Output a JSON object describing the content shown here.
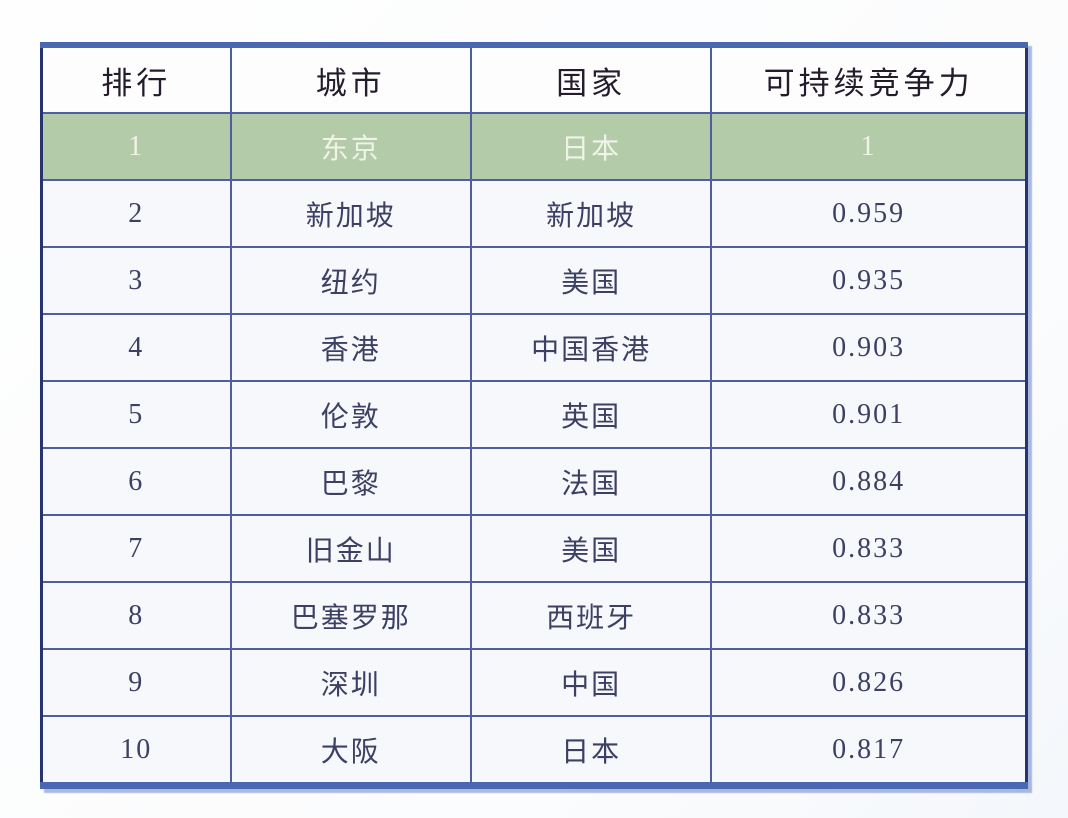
{
  "chart_data": {
    "type": "table",
    "title": "",
    "columns": [
      "排行",
      "城市",
      "国家",
      "可持续竞争力"
    ],
    "rows": [
      {
        "rank": "1",
        "city": "东京",
        "country": "日本",
        "score": "1",
        "highlighted": true
      },
      {
        "rank": "2",
        "city": "新加坡",
        "country": "新加坡",
        "score": "0.959",
        "highlighted": false
      },
      {
        "rank": "3",
        "city": "纽约",
        "country": "美国",
        "score": "0.935",
        "highlighted": false
      },
      {
        "rank": "4",
        "city": "香港",
        "country": "中国香港",
        "score": "0.903",
        "highlighted": false
      },
      {
        "rank": "5",
        "city": "伦敦",
        "country": "英国",
        "score": "0.901",
        "highlighted": false
      },
      {
        "rank": "6",
        "city": "巴黎",
        "country": "法国",
        "score": "0.884",
        "highlighted": false
      },
      {
        "rank": "7",
        "city": "旧金山",
        "country": "美国",
        "score": "0.833",
        "highlighted": false
      },
      {
        "rank": "8",
        "city": "巴塞罗那",
        "country": "西班牙",
        "score": "0.833",
        "highlighted": false
      },
      {
        "rank": "9",
        "city": "深圳",
        "country": "中国",
        "score": "0.826",
        "highlighted": false
      },
      {
        "rank": "10",
        "city": "大阪",
        "country": "日本",
        "score": "0.817",
        "highlighted": false
      }
    ]
  },
  "colors": {
    "outer-blue": "#4a68b2",
    "outer-dark": "#273470",
    "grid": "#4e5ea0",
    "header-bg": "#fdfdfe",
    "header-text": "#241c2c",
    "row-bg": "#f6f8fc",
    "cell-text": "#3d3f63",
    "hl-bg": "#b3cba9",
    "hl-text": "#eff4e6"
  }
}
